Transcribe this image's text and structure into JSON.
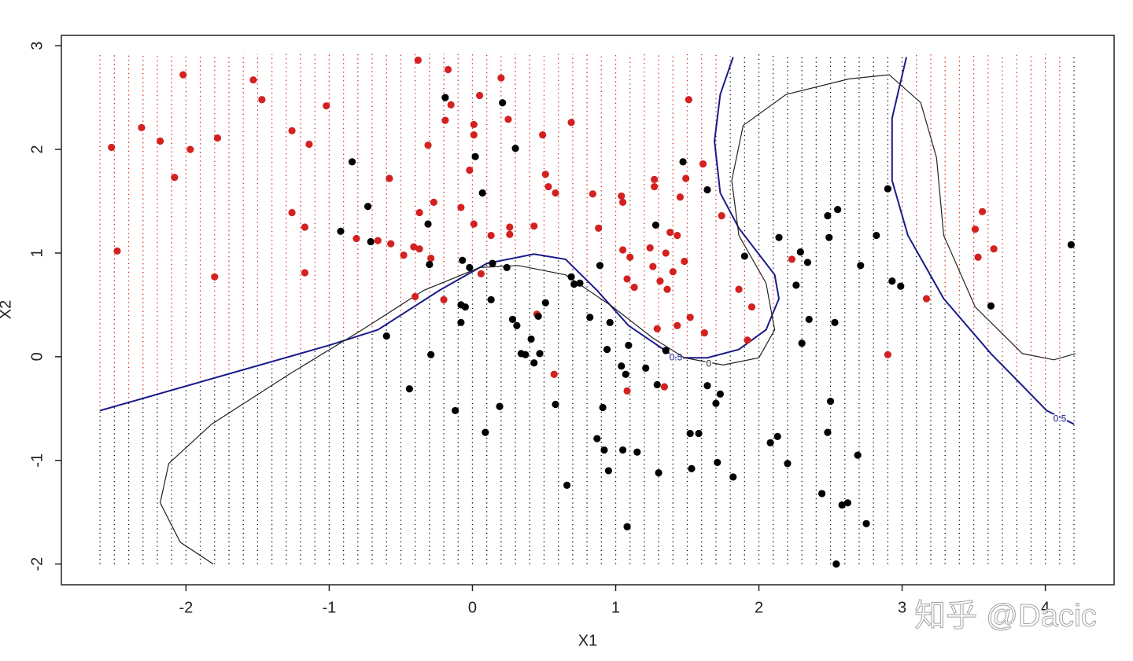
{
  "chart_data": {
    "type": "scatter",
    "xlabel": "X1",
    "ylabel": "X2",
    "xlim": [
      -2.87,
      4.48
    ],
    "ylim": [
      -2.2,
      3.1
    ],
    "xticks": [
      -2,
      -1,
      0,
      1,
      2,
      3,
      4
    ],
    "yticks": [
      -2,
      -1,
      0,
      1,
      2,
      3
    ],
    "series": [
      {
        "color": "#d42020",
        "x": [
          -2.52,
          -2.48,
          -2.31,
          -2.18,
          -2.08,
          -2.02,
          -1.97,
          -1.78,
          -1.8,
          -1.53,
          -1.47,
          -1.26,
          -1.26,
          -1.17,
          -1.17,
          -1.14,
          -1.02,
          -0.81,
          -0.66,
          -0.58,
          -0.57,
          -0.48,
          -0.41,
          -0.4,
          -0.38,
          -0.37,
          -0.37,
          -0.31,
          -0.29,
          -0.27,
          -0.2,
          -0.19,
          -0.17,
          -0.15,
          -0.08,
          -0.02,
          0.01,
          0.01,
          0.01,
          0.05,
          0.06,
          0.13,
          0.2,
          0.25,
          0.26,
          0.26,
          0.43,
          0.49,
          0.51,
          0.53,
          0.58,
          0.69,
          0.84,
          0.88,
          1.04,
          1.05,
          1.05,
          1.08,
          1.1,
          1.13,
          1.24,
          1.26,
          1.27,
          1.27,
          1.29,
          1.31,
          1.35,
          1.36,
          1.38,
          1.4,
          1.43,
          1.45,
          1.49,
          1.51,
          1.52,
          1.43,
          1.48,
          1.61,
          1.62,
          1.74,
          1.86,
          1.95,
          1.92,
          2.23,
          2.9,
          3.17,
          3.51,
          3.56,
          3.53,
          3.64,
          0.57,
          1.08,
          1.34,
          0.45
        ],
        "y": [
          2.02,
          1.02,
          2.21,
          2.08,
          1.73,
          2.72,
          2.0,
          2.11,
          0.77,
          2.67,
          2.48,
          1.39,
          2.18,
          1.25,
          0.81,
          2.05,
          2.42,
          1.14,
          1.12,
          1.72,
          1.09,
          0.98,
          1.06,
          0.58,
          2.86,
          1.39,
          1.04,
          2.04,
          0.95,
          1.49,
          0.55,
          2.28,
          2.77,
          2.43,
          1.44,
          1.8,
          2.14,
          2.24,
          1.28,
          2.52,
          0.8,
          1.17,
          2.69,
          2.29,
          1.25,
          1.18,
          1.26,
          2.14,
          1.76,
          1.64,
          1.58,
          2.26,
          1.57,
          1.24,
          1.55,
          1.49,
          1.03,
          0.75,
          0.96,
          0.67,
          1.05,
          0.87,
          1.71,
          1.64,
          0.27,
          0.73,
          1.0,
          0.65,
          1.2,
          0.82,
          1.17,
          1.54,
          1.72,
          2.48,
          0.38,
          0.3,
          0.92,
          1.86,
          0.23,
          1.36,
          0.65,
          0.48,
          0.16,
          0.94,
          0.02,
          0.56,
          1.23,
          1.4,
          0.96,
          1.04,
          -0.17,
          -0.33,
          -0.29,
          0.41
        ]
      },
      {
        "color": "#000000",
        "x": [
          -0.84,
          -0.92,
          -0.73,
          -0.71,
          -0.6,
          -0.44,
          -0.31,
          -0.3,
          -0.29,
          -0.19,
          -0.12,
          -0.08,
          -0.08,
          -0.07,
          -0.05,
          -0.02,
          0.02,
          0.07,
          0.09,
          0.13,
          0.14,
          0.19,
          0.21,
          0.24,
          0.28,
          0.3,
          0.31,
          0.34,
          0.37,
          0.41,
          0.43,
          0.46,
          0.47,
          0.51,
          0.58,
          0.66,
          0.69,
          0.71,
          0.75,
          0.82,
          0.87,
          0.89,
          0.91,
          0.92,
          0.95,
          0.96,
          0.94,
          1.04,
          1.05,
          1.07,
          1.08,
          1.09,
          1.15,
          1.21,
          1.28,
          1.29,
          1.3,
          1.35,
          1.47,
          1.52,
          1.53,
          1.58,
          1.64,
          1.64,
          1.7,
          1.71,
          1.73,
          1.82,
          1.9,
          2.08,
          2.13,
          2.14,
          2.2,
          2.26,
          2.29,
          2.3,
          2.34,
          2.35,
          2.44,
          2.48,
          2.5,
          2.49,
          2.53,
          2.55,
          2.58,
          2.62,
          2.69,
          2.75,
          2.54,
          2.71,
          2.82,
          2.9,
          2.93,
          2.99,
          3.62,
          4.18,
          2.48
        ],
        "y": [
          1.88,
          1.21,
          1.45,
          1.11,
          0.2,
          -0.31,
          1.28,
          0.89,
          0.02,
          2.5,
          -0.52,
          0.5,
          0.33,
          0.93,
          0.48,
          0.86,
          1.93,
          1.58,
          -0.73,
          0.55,
          0.9,
          -0.48,
          2.45,
          0.86,
          0.36,
          2.01,
          0.3,
          0.03,
          0.02,
          0.17,
          -0.06,
          0.39,
          0.03,
          0.52,
          -0.46,
          -1.24,
          0.77,
          0.7,
          0.71,
          0.38,
          -0.79,
          0.88,
          -0.49,
          -0.9,
          -1.1,
          0.33,
          0.07,
          -0.09,
          -0.9,
          -0.17,
          -1.64,
          0.11,
          -0.92,
          -0.11,
          1.27,
          -0.27,
          -1.12,
          0.06,
          1.88,
          -0.74,
          -1.08,
          -0.74,
          1.61,
          -0.28,
          -0.45,
          -1.02,
          -0.36,
          -1.16,
          0.97,
          -0.83,
          -0.77,
          1.15,
          -1.03,
          0.69,
          1.01,
          0.13,
          0.91,
          0.36,
          -1.32,
          -0.73,
          -0.43,
          1.15,
          0.33,
          1.42,
          -1.43,
          -1.41,
          -0.95,
          -1.61,
          -2.0,
          0.88,
          1.17,
          1.62,
          0.73,
          0.68,
          0.49,
          1.08,
          1.36
        ]
      }
    ],
    "lines": [
      {
        "color": "#1a1a8c",
        "label": "0.5",
        "x": [
          -2.6,
          -1.0,
          -0.66,
          -0.23,
          0.1,
          0.43,
          0.65,
          0.87,
          1.09,
          1.42,
          1.64,
          1.86,
          2.05,
          2.14,
          2.11,
          1.86,
          1.73,
          1.69,
          1.73,
          1.82,
          null,
          3.03,
          2.93,
          2.93,
          3.04,
          3.29,
          3.62,
          4.01,
          4.2
        ],
        "y": [
          -0.52,
          0.11,
          0.26,
          0.64,
          0.9,
          0.99,
          0.94,
          0.64,
          0.3,
          -0.01,
          -0.01,
          0.07,
          0.26,
          0.56,
          0.79,
          1.24,
          1.58,
          2.08,
          2.53,
          2.89,
          null,
          2.89,
          2.3,
          1.7,
          1.17,
          0.56,
          0.03,
          -0.52,
          -0.65
        ]
      },
      {
        "color": "#222222",
        "label": "0",
        "x": [
          -1.81,
          -2.04,
          -2.18,
          -2.12,
          -1.82,
          -1.27,
          -0.77,
          -0.34,
          0.05,
          0.32,
          0.65,
          0.98,
          1.26,
          1.48,
          1.75,
          2.0,
          2.11,
          2.05,
          1.86,
          1.81,
          1.89,
          2.19,
          2.63,
          2.91,
          3.13,
          3.24,
          3.29,
          3.51,
          3.84,
          4.06,
          4.21
        ],
        "y": [
          -2.0,
          -1.79,
          -1.41,
          -1.03,
          -0.65,
          -0.16,
          0.26,
          0.64,
          0.86,
          0.88,
          0.79,
          0.48,
          0.18,
          -0.01,
          -0.08,
          -0.01,
          0.26,
          0.71,
          1.17,
          1.7,
          2.23,
          2.53,
          2.68,
          2.72,
          2.45,
          1.92,
          1.17,
          0.48,
          0.03,
          -0.03,
          0.03
        ]
      }
    ]
  },
  "watermark": "知乎 @Dacic"
}
